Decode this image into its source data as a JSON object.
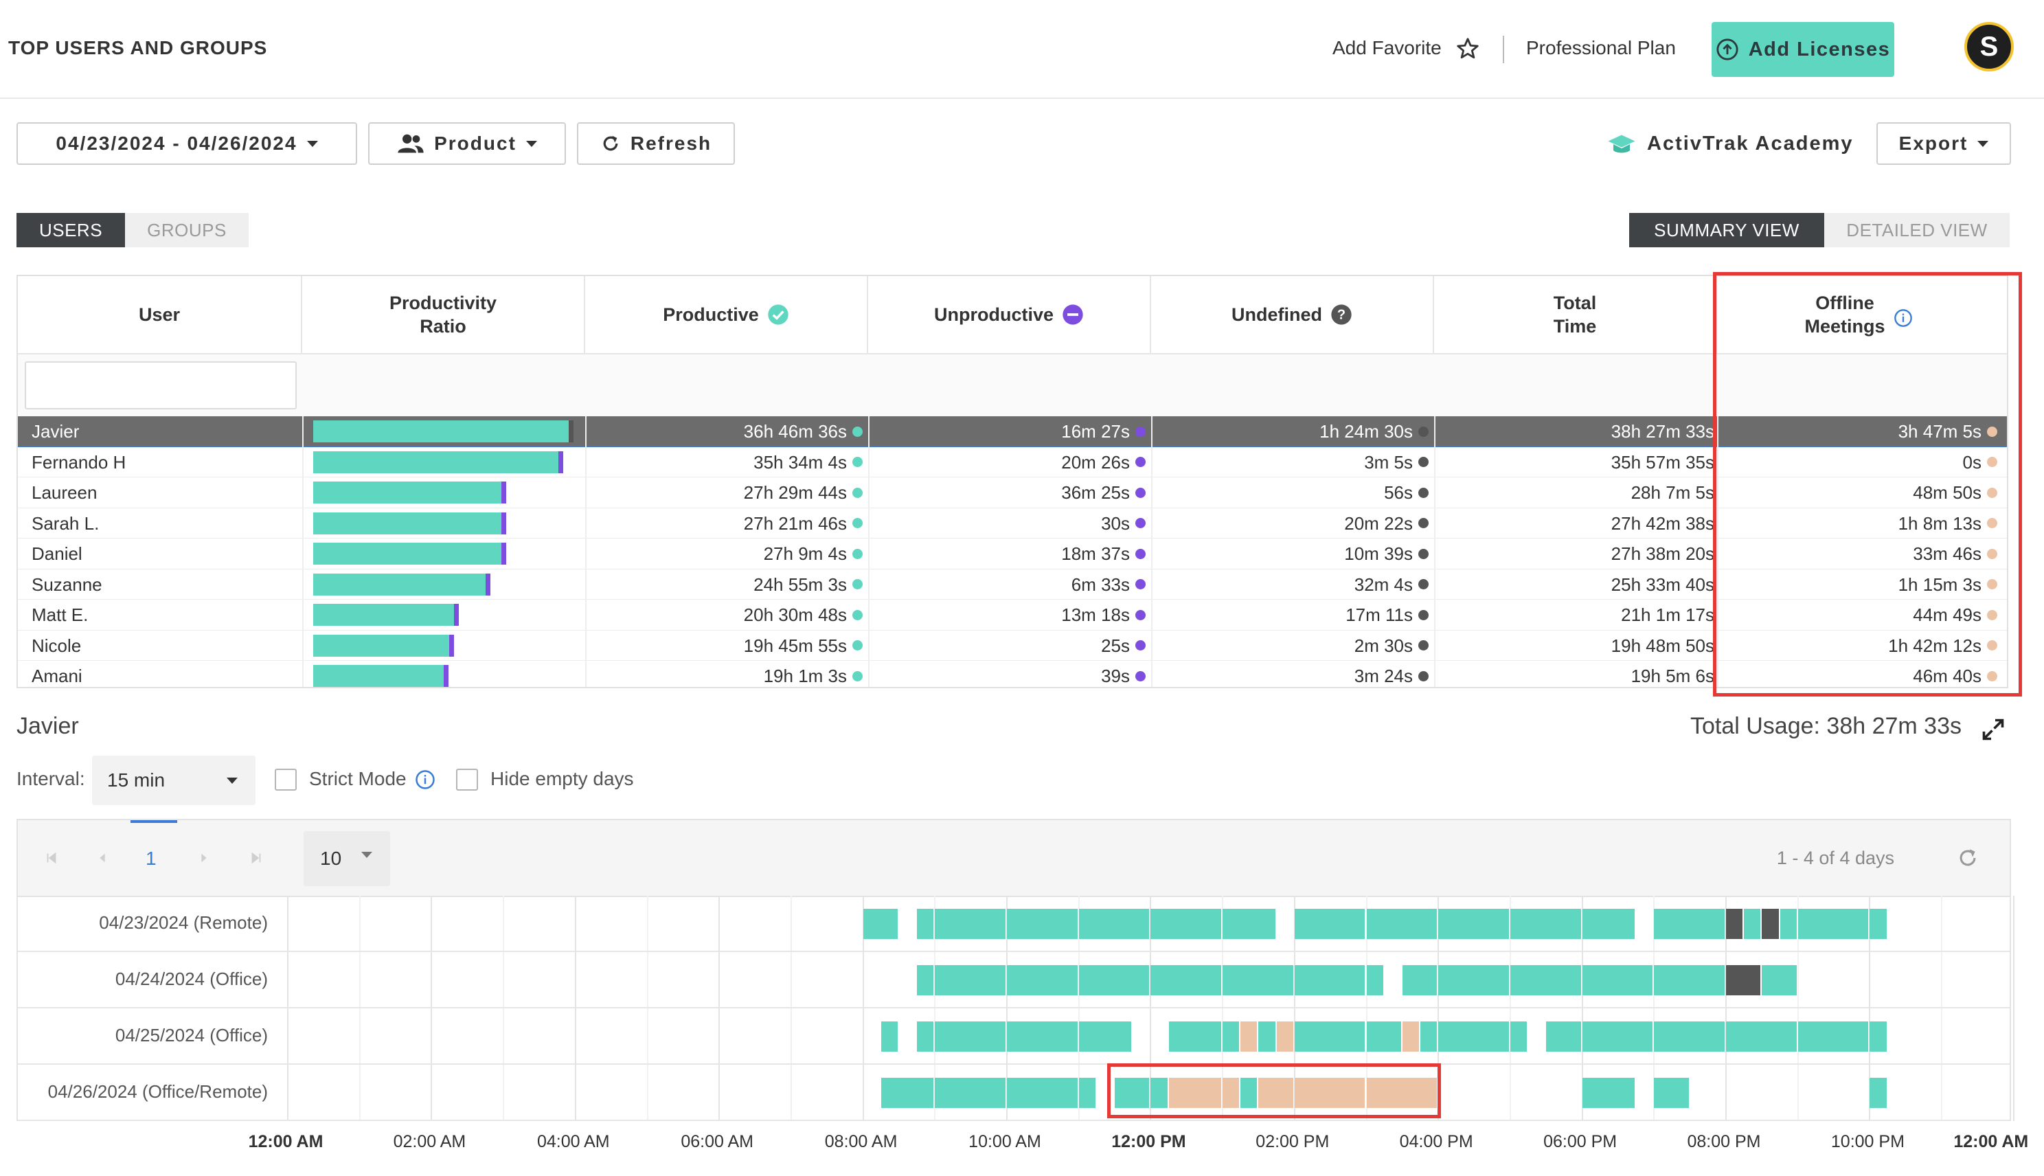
{
  "header": {
    "title": "TOP USERS AND GROUPS",
    "add_favorite": "Add Favorite",
    "plan": "Professional Plan",
    "add_licenses": "Add Licenses",
    "avatar_letter": "S"
  },
  "toolbar": {
    "date_range": "04/23/2024 - 04/26/2024",
    "product": "Product",
    "refresh": "Refresh",
    "academy": "ActivTrak Academy",
    "export": "Export"
  },
  "tabs": {
    "users": "USERS",
    "groups": "GROUPS",
    "summary_view": "SUMMARY VIEW",
    "detailed_view": "DETAILED VIEW"
  },
  "table": {
    "columns": {
      "user": "User",
      "ratio_1": "Productivity",
      "ratio_2": "Ratio",
      "productive": "Productive",
      "unproductive": "Unproductive",
      "undefined": "Undefined",
      "total_1": "Total",
      "total_2": "Time",
      "offline_1": "Offline",
      "offline_2": "Meetings"
    },
    "rows": [
      {
        "user": "Javier",
        "productive_ratio": 0.98,
        "productive": "36h 46m 36s",
        "unproductive": "16m 27s",
        "undefined": "1h 24m 30s",
        "total": "38h 27m 33s",
        "offline": "3h 47m 5s",
        "selected": true
      },
      {
        "user": "Fernando H",
        "productive_ratio": 0.94,
        "productive": "35h 34m 4s",
        "unproductive": "20m 26s",
        "undefined": "3m 5s",
        "total": "35h 57m 35s",
        "offline": "0s"
      },
      {
        "user": "Laureen",
        "productive_ratio": 0.72,
        "productive": "27h 29m 44s",
        "unproductive": "36m 25s",
        "undefined": "56s",
        "total": "28h 7m 5s",
        "offline": "48m 50s"
      },
      {
        "user": "Sarah L.",
        "productive_ratio": 0.72,
        "productive": "27h 21m 46s",
        "unproductive": "30s",
        "undefined": "20m 22s",
        "total": "27h 42m 38s",
        "offline": "1h 8m 13s"
      },
      {
        "user": "Daniel",
        "productive_ratio": 0.72,
        "productive": "27h 9m 4s",
        "unproductive": "18m 37s",
        "undefined": "10m 39s",
        "total": "27h 38m 20s",
        "offline": "33m 46s"
      },
      {
        "user": "Suzanne",
        "productive_ratio": 0.66,
        "productive": "24h 55m 3s",
        "unproductive": "6m 33s",
        "undefined": "32m 4s",
        "total": "25h 33m 40s",
        "offline": "1h 15m 3s"
      },
      {
        "user": "Matt E.",
        "productive_ratio": 0.54,
        "productive": "20h 30m 48s",
        "unproductive": "13m 18s",
        "undefined": "17m 11s",
        "total": "21h 1m 17s",
        "offline": "44m 49s"
      },
      {
        "user": "Nicole",
        "productive_ratio": 0.52,
        "productive": "19h 45m 55s",
        "unproductive": "25s",
        "undefined": "2m 30s",
        "total": "19h 48m 50s",
        "offline": "1h 42m 12s"
      },
      {
        "user": "Amani",
        "productive_ratio": 0.5,
        "productive": "19h 1m 3s",
        "unproductive": "39s",
        "undefined": "3m 24s",
        "total": "19h 5m 6s",
        "offline": "46m 40s"
      }
    ]
  },
  "detail": {
    "user": "Javier",
    "total_usage": "Total Usage: 38h 27m 33s",
    "interval_label": "Interval:",
    "interval_value": "15 min",
    "strict_mode": "Strict Mode",
    "hide_empty": "Hide empty days",
    "page": "1",
    "page_size": "10",
    "range": "1 - 4 of 4 days"
  },
  "timeline": {
    "days": [
      {
        "label": "04/23/2024 (Remote)",
        "segments": [
          [
            8.0,
            8.5,
            "p"
          ],
          [
            8.75,
            9.0,
            "p"
          ],
          [
            9.0,
            10.0,
            "p"
          ],
          [
            10.0,
            11.0,
            "p"
          ],
          [
            11.0,
            12.0,
            "p"
          ],
          [
            12.0,
            13.0,
            "p"
          ],
          [
            13.0,
            13.75,
            "p"
          ],
          [
            14.0,
            15.0,
            "p"
          ],
          [
            15.0,
            16.0,
            "p"
          ],
          [
            16.0,
            17.0,
            "p"
          ],
          [
            17.0,
            18.0,
            "p"
          ],
          [
            18.0,
            18.75,
            "p"
          ],
          [
            19.0,
            20.0,
            "p"
          ],
          [
            20.0,
            20.25,
            "u"
          ],
          [
            20.25,
            20.5,
            "p"
          ],
          [
            20.5,
            20.75,
            "u"
          ],
          [
            20.75,
            21.0,
            "p"
          ],
          [
            21.0,
            22.0,
            "p"
          ],
          [
            22.0,
            22.25,
            "p"
          ]
        ]
      },
      {
        "label": "04/24/2024 (Office)",
        "segments": [
          [
            8.75,
            9.0,
            "p"
          ],
          [
            9.0,
            10.0,
            "p"
          ],
          [
            10.0,
            11.0,
            "p"
          ],
          [
            11.0,
            12.0,
            "p"
          ],
          [
            12.0,
            13.0,
            "p"
          ],
          [
            13.0,
            14.0,
            "p"
          ],
          [
            14.0,
            15.0,
            "p"
          ],
          [
            15.0,
            15.25,
            "p"
          ],
          [
            15.5,
            16.0,
            "p"
          ],
          [
            16.0,
            17.0,
            "p"
          ],
          [
            17.0,
            18.0,
            "p"
          ],
          [
            18.0,
            19.0,
            "p"
          ],
          [
            19.0,
            20.0,
            "p"
          ],
          [
            20.0,
            20.5,
            "u"
          ],
          [
            20.5,
            21.0,
            "p"
          ],
          [
            21.0,
            21.0,
            "p"
          ]
        ]
      },
      {
        "label": "04/25/2024 (Office)",
        "segments": [
          [
            8.25,
            8.5,
            "p"
          ],
          [
            8.75,
            9.0,
            "p"
          ],
          [
            9.0,
            10.0,
            "p"
          ],
          [
            10.0,
            11.0,
            "p"
          ],
          [
            11.0,
            11.75,
            "p"
          ],
          [
            12.25,
            13.0,
            "p"
          ],
          [
            13.0,
            13.25,
            "p"
          ],
          [
            13.25,
            13.5,
            "o"
          ],
          [
            13.5,
            13.75,
            "p"
          ],
          [
            13.75,
            14.0,
            "o"
          ],
          [
            14.0,
            15.0,
            "p"
          ],
          [
            15.0,
            15.5,
            "p"
          ],
          [
            15.5,
            15.75,
            "o"
          ],
          [
            15.75,
            16.0,
            "p"
          ],
          [
            16.0,
            17.0,
            "p"
          ],
          [
            17.0,
            17.25,
            "p"
          ],
          [
            17.5,
            18.0,
            "p"
          ],
          [
            18.0,
            19.0,
            "p"
          ],
          [
            19.0,
            20.0,
            "p"
          ],
          [
            20.0,
            21.0,
            "p"
          ],
          [
            21.0,
            22.0,
            "p"
          ],
          [
            22.0,
            22.25,
            "p"
          ]
        ]
      },
      {
        "label": "04/26/2024 (Office/Remote)",
        "segments": [
          [
            8.25,
            9.0,
            "p"
          ],
          [
            9.0,
            10.0,
            "p"
          ],
          [
            10.0,
            11.0,
            "p"
          ],
          [
            11.0,
            11.25,
            "p"
          ],
          [
            11.5,
            12.0,
            "p"
          ],
          [
            12.0,
            12.25,
            "p"
          ],
          [
            12.25,
            13.0,
            "o"
          ],
          [
            13.0,
            13.25,
            "o"
          ],
          [
            13.25,
            13.5,
            "p"
          ],
          [
            13.5,
            14.0,
            "o"
          ],
          [
            14.0,
            15.0,
            "o"
          ],
          [
            15.0,
            16.0,
            "o"
          ],
          [
            18.0,
            18.75,
            "p"
          ],
          [
            19.0,
            19.5,
            "p"
          ],
          [
            22.0,
            22.25,
            "p"
          ]
        ]
      }
    ],
    "axis": [
      "12:00 AM",
      "02:00 AM",
      "04:00 AM",
      "06:00 AM",
      "08:00 AM",
      "10:00 AM",
      "12:00 PM",
      "02:00 PM",
      "04:00 PM",
      "06:00 PM",
      "08:00 PM",
      "10:00 PM",
      "12:00 AM"
    ],
    "axis_bold": [
      true,
      false,
      false,
      false,
      false,
      false,
      true,
      false,
      false,
      false,
      false,
      false,
      true
    ]
  },
  "colors": {
    "productive": "#5ed6c0",
    "unproductive": "#7c4ddf",
    "undefined": "#555555",
    "offline": "#ecc3a5",
    "highlight": "#e53935"
  }
}
